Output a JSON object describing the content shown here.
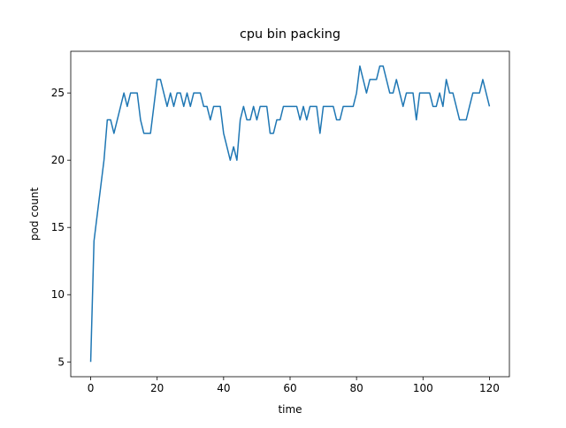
{
  "chart_data": {
    "type": "line",
    "title": "cpu bin packing",
    "x_label": "time",
    "y_label": "pod count",
    "x": [
      0,
      1,
      2,
      3,
      4,
      5,
      6,
      7,
      8,
      9,
      10,
      11,
      12,
      13,
      14,
      15,
      16,
      17,
      18,
      19,
      20,
      21,
      22,
      23,
      24,
      25,
      26,
      27,
      28,
      29,
      30,
      31,
      32,
      33,
      34,
      35,
      36,
      37,
      38,
      39,
      40,
      41,
      42,
      43,
      44,
      45,
      46,
      47,
      48,
      49,
      50,
      51,
      52,
      53,
      54,
      55,
      56,
      57,
      58,
      59,
      60,
      61,
      62,
      63,
      64,
      65,
      66,
      67,
      68,
      69,
      70,
      71,
      72,
      73,
      74,
      75,
      76,
      77,
      78,
      79,
      80,
      81,
      82,
      83,
      84,
      85,
      86,
      87,
      88,
      89,
      90,
      91,
      92,
      93,
      94,
      95,
      96,
      97,
      98,
      99,
      100,
      101,
      102,
      103,
      104,
      105,
      106,
      107,
      108,
      109,
      110,
      111,
      112,
      113,
      114,
      115,
      116,
      117,
      118,
      119,
      120
    ],
    "series": [
      {
        "name": "pod count",
        "color": "#1f77b4",
        "values": [
          5,
          14,
          16,
          18,
          20,
          23,
          23,
          22,
          23,
          24,
          25,
          24,
          25,
          25,
          25,
          23,
          22,
          22,
          22,
          24,
          26,
          26,
          25,
          24,
          25,
          24,
          25,
          25,
          24,
          25,
          24,
          25,
          25,
          25,
          24,
          24,
          23,
          24,
          24,
          24,
          22,
          21,
          20,
          21,
          20,
          23,
          24,
          23,
          23,
          24,
          23,
          24,
          24,
          24,
          22,
          22,
          23,
          23,
          24,
          24,
          24,
          24,
          24,
          23,
          24,
          23,
          24,
          24,
          24,
          22,
          24,
          24,
          24,
          24,
          23,
          23,
          24,
          24,
          24,
          24,
          25,
          27,
          26,
          25,
          26,
          26,
          26,
          27,
          27,
          26,
          25,
          25,
          26,
          25,
          24,
          25,
          25,
          25,
          23,
          25,
          25,
          25,
          25,
          24,
          24,
          25,
          24,
          26,
          25,
          25,
          24,
          23,
          23,
          23,
          24,
          25,
          25,
          25,
          26,
          25,
          24
        ]
      }
    ],
    "xlim": [
      -6,
      126
    ],
    "ylim": [
      3.9,
      28.1
    ],
    "xticks": [
      0,
      20,
      40,
      60,
      80,
      100,
      120
    ],
    "yticks": [
      5,
      10,
      15,
      20,
      25
    ]
  }
}
